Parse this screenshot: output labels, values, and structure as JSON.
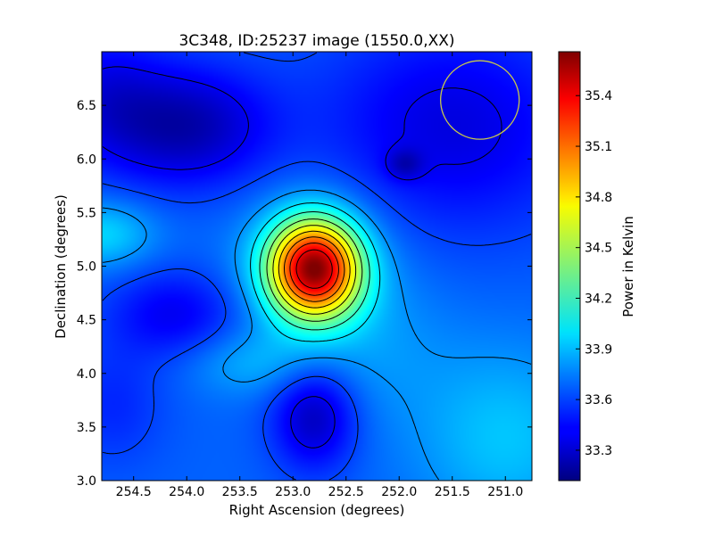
{
  "chart_data": {
    "type": "heatmap",
    "title": "3C348, ID:25237 image (1550.0,XX)",
    "xlabel": "Right Ascension (degrees)",
    "ylabel": "Declination (degrees)",
    "colorbar_label": "Power in Kelvin",
    "xlim": [
      254.8,
      250.75
    ],
    "ylim": [
      3.0,
      7.0
    ],
    "clim": [
      33.12,
      35.66
    ],
    "colormap": "jet",
    "grid": false,
    "x_ticks": [
      {
        "value": 254.5,
        "label": "254.5"
      },
      {
        "value": 254.0,
        "label": "254.0"
      },
      {
        "value": 253.5,
        "label": "253.5"
      },
      {
        "value": 253.0,
        "label": "253.0"
      },
      {
        "value": 252.5,
        "label": "252.5"
      },
      {
        "value": 252.0,
        "label": "252.0"
      },
      {
        "value": 251.5,
        "label": "251.5"
      },
      {
        "value": 251.0,
        "label": "251.0"
      }
    ],
    "y_ticks": [
      {
        "value": 3.0,
        "label": "3.0"
      },
      {
        "value": 3.5,
        "label": "3.5"
      },
      {
        "value": 4.0,
        "label": "4.0"
      },
      {
        "value": 4.5,
        "label": "4.5"
      },
      {
        "value": 5.0,
        "label": "5.0"
      },
      {
        "value": 5.5,
        "label": "5.5"
      },
      {
        "value": 6.0,
        "label": "6.0"
      },
      {
        "value": 6.5,
        "label": "6.5"
      }
    ],
    "colorbar_ticks": [
      {
        "value": 33.3,
        "label": "33.3"
      },
      {
        "value": 33.6,
        "label": "33.6"
      },
      {
        "value": 33.9,
        "label": "33.9"
      },
      {
        "value": 34.2,
        "label": "34.2"
      },
      {
        "value": 34.5,
        "label": "34.5"
      },
      {
        "value": 34.8,
        "label": "34.8"
      },
      {
        "value": 35.1,
        "label": "35.1"
      },
      {
        "value": 35.4,
        "label": "35.4"
      }
    ],
    "peak": {
      "ra": 252.8,
      "dec": 4.98,
      "value": 35.6
    },
    "beam_circle": {
      "ra": 251.24,
      "dec": 6.55,
      "radius_deg": 0.37,
      "color": "#c8c84a"
    },
    "contour_color": "#000000"
  }
}
